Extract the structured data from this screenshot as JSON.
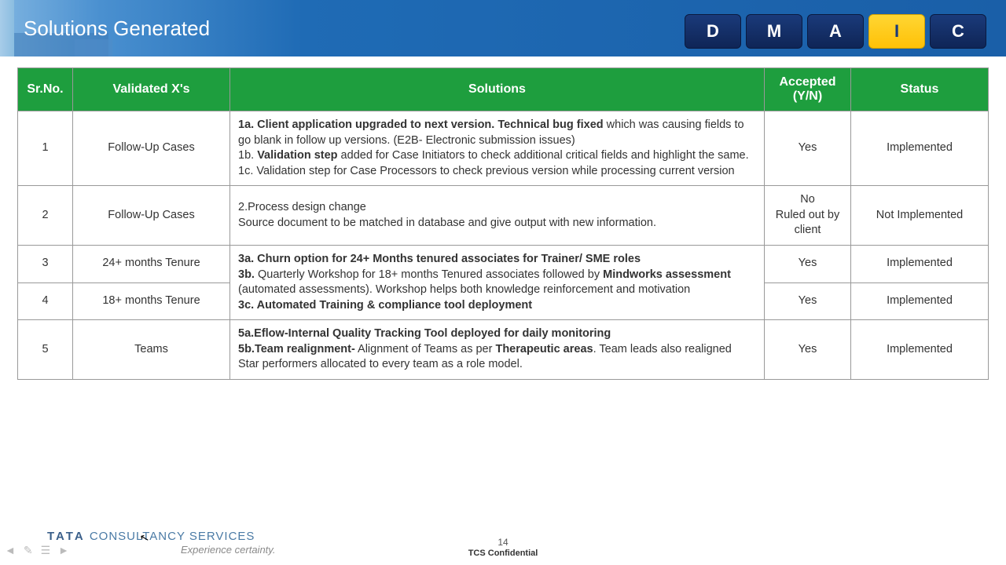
{
  "header": {
    "title": "Solutions Generated",
    "dmaic": [
      "D",
      "M",
      "A",
      "I",
      "C"
    ],
    "active_index": 3
  },
  "table": {
    "columns": [
      "Sr.No.",
      "Validated X's",
      "Solutions",
      "Accepted (Y/N)",
      "Status"
    ],
    "header_bg": "#1e9e3e",
    "rows": [
      {
        "sr": "1",
        "x": "Follow-Up Cases",
        "sol": "<b>1a. Client application upgraded to next version. Technical bug fixed</b> which was causing fields to go blank in follow up versions. (E2B- Electronic submission issues)<br>1b. <b>Validation step</b> added for Case Initiators to check additional critical fields and highlight the same.<br>1c. Validation step for Case Processors  to check previous version while processing current version",
        "acc": "Yes",
        "status": "Implemented"
      },
      {
        "sr": "2",
        "x": "Follow-Up Cases",
        "sol": "2.Process design change<br>Source document to be matched in database and give output with new information.",
        "acc": "No<br>Ruled out by client",
        "status": "Not Implemented"
      },
      {
        "sr": "3",
        "x": "24+ months Tenure",
        "sol": "<b>3a. Churn option for 24+ Months tenured associates for Trainer/ SME roles</b><br><b>3b.</b> Quarterly Workshop for 18+ months Tenured associates followed by <b>Mindworks assessment</b> (automated assessments). Workshop helps both knowledge reinforcement and motivation",
        "acc": "Yes",
        "status": "Implemented",
        "merge_sol_next": true
      },
      {
        "sr": "4",
        "x": "18+ months Tenure",
        "sol_extra": "<b>3c. Automated Training & compliance tool deployment</b>",
        "acc": "Yes",
        "status": "Implemented"
      },
      {
        "sr": "5",
        "x": "Teams",
        "sol": "<b>5a.Eflow-Internal Quality Tracking Tool deployed for daily monitoring</b><br><b>5b.Team realignment-</b> Alignment of Teams as per <b>Therapeutic areas</b>. Team leads also realigned<br>Star performers allocated to every team as a role model.",
        "acc": "Yes",
        "status": "Implemented"
      }
    ]
  },
  "footer": {
    "brand_prefix": "TATA",
    "brand_rest": "CONSULTANCY SERVICES",
    "tagline": "Experience certainty.",
    "page_number": "14",
    "confidential": "TCS Confidential"
  }
}
